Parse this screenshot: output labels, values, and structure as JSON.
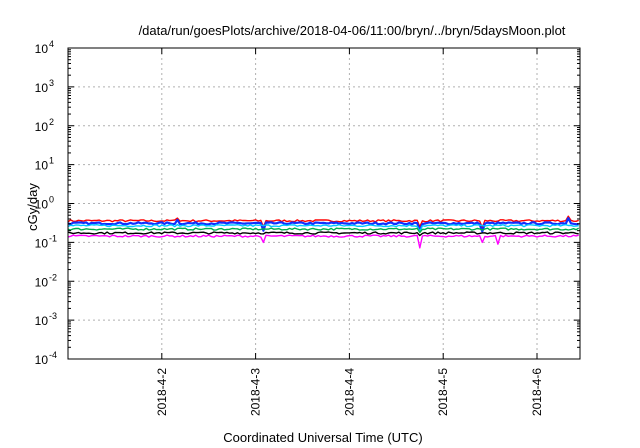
{
  "chart_data": {
    "type": "line",
    "title": "/data/run/goesPlots/archive/2018-04-06/11:00/bryn/../bryn/5daysMoon.plot",
    "xlabel": "Coordinated Universal Time (UTC)",
    "ylabel": "cGy/day",
    "y_scale": "log",
    "ylim": [
      0.0001,
      10000
    ],
    "y_ticks": [
      {
        "base": "10",
        "exp": "4"
      },
      {
        "base": "10",
        "exp": "3"
      },
      {
        "base": "10",
        "exp": "2"
      },
      {
        "base": "10",
        "exp": "1"
      },
      {
        "base": "10",
        "exp": "0"
      },
      {
        "base": "10",
        "exp": "-1"
      },
      {
        "base": "10",
        "exp": "-2"
      },
      {
        "base": "10",
        "exp": "-3"
      },
      {
        "base": "10",
        "exp": "-4"
      }
    ],
    "x_ticks": [
      "2018-4-2",
      "2018-4-3",
      "2018-4-4",
      "2018-4-5",
      "2018-4-6"
    ],
    "x_range_days": [
      "2018-04-01T00:00",
      "2018-04-06T11:00"
    ],
    "grid": true,
    "legend": "none",
    "series": [
      {
        "color": "#ff0000",
        "base": 0.36,
        "dips": [
          [
            "2018-04-01T07:00",
            0.25
          ],
          [
            "2018-04-02T11:00",
            0.26
          ],
          [
            "2018-04-03T02:00",
            0.25
          ],
          [
            "2018-04-04T05:00",
            0.24
          ],
          [
            "2018-04-04T18:00",
            0.25
          ],
          [
            "2018-04-05T10:00",
            0.24
          ]
        ],
        "peaks": [
          [
            "2018-04-02T04:00",
            0.42
          ],
          [
            "2018-04-04T13:00",
            0.44
          ],
          [
            "2018-04-06T08:00",
            0.47
          ]
        ]
      },
      {
        "color": "#1030ff",
        "base": 0.31,
        "dips": [
          [
            "2018-04-01T07:00",
            0.2
          ],
          [
            "2018-04-02T11:00",
            0.21
          ],
          [
            "2018-04-03T02:00",
            0.2
          ],
          [
            "2018-04-04T05:00",
            0.19
          ],
          [
            "2018-04-04T18:00",
            0.2
          ],
          [
            "2018-04-05T10:00",
            0.19
          ]
        ],
        "peaks": [
          [
            "2018-04-02T04:00",
            0.38
          ],
          [
            "2018-04-04T13:00",
            0.4
          ],
          [
            "2018-04-06T08:00",
            0.42
          ]
        ]
      },
      {
        "color": "#00c8ff",
        "base": 0.27,
        "dips": [
          [
            "2018-04-01T07:00",
            0.19
          ],
          [
            "2018-04-02T11:00",
            0.2
          ],
          [
            "2018-04-04T18:00",
            0.19
          ]
        ],
        "peaks": []
      },
      {
        "color": "#00b050",
        "base": 0.22,
        "dips": [
          [
            "2018-04-04T18:00",
            0.18
          ]
        ],
        "peaks": []
      },
      {
        "color": "#000000",
        "base": 0.175,
        "dips": [
          [
            "2018-04-04T18:00",
            0.15
          ]
        ],
        "peaks": []
      },
      {
        "color": "#ff00ff",
        "base": 0.145,
        "dips": [
          [
            "2018-04-01T07:00",
            0.11
          ],
          [
            "2018-04-02T11:00",
            0.075
          ],
          [
            "2018-04-03T02:00",
            0.1
          ],
          [
            "2018-04-04T05:00",
            0.1
          ],
          [
            "2018-04-04T18:00",
            0.072
          ],
          [
            "2018-04-05T10:00",
            0.1
          ],
          [
            "2018-04-05T14:00",
            0.09
          ]
        ],
        "peaks": []
      }
    ]
  }
}
